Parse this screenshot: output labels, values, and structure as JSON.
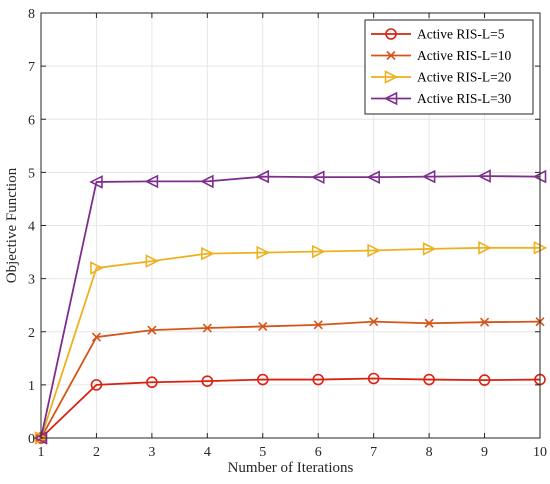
{
  "chart_data": {
    "type": "line",
    "title": "",
    "xlabel": "Number of Iterations",
    "ylabel": "Objective Function",
    "xlim": [
      1,
      10
    ],
    "ylim": [
      0,
      8
    ],
    "xticks": [
      "1",
      "2",
      "3",
      "4",
      "5",
      "6",
      "7",
      "8",
      "9",
      "10"
    ],
    "yticks": [
      "0",
      "1",
      "2",
      "3",
      "4",
      "5",
      "6",
      "7",
      "8"
    ],
    "grid": true,
    "legend_position": "top-right",
    "x": [
      1,
      2,
      3,
      4,
      5,
      6,
      7,
      8,
      9,
      10
    ],
    "series": [
      {
        "name": "Active RIS-L=5",
        "color": "#d92211",
        "marker": "circle",
        "values": [
          0,
          1.0,
          1.05,
          1.07,
          1.1,
          1.1,
          1.12,
          1.1,
          1.09,
          1.1
        ]
      },
      {
        "name": "Active RIS-L=10",
        "color": "#d45518",
        "marker": "x",
        "values": [
          0,
          1.9,
          2.03,
          2.07,
          2.1,
          2.13,
          2.19,
          2.16,
          2.18,
          2.19
        ]
      },
      {
        "name": "Active RIS-L=20",
        "color": "#edb120",
        "marker": "triangle-right",
        "values": [
          0,
          3.2,
          3.33,
          3.47,
          3.49,
          3.51,
          3.53,
          3.56,
          3.58,
          3.58
        ]
      },
      {
        "name": "Active RIS-L=30",
        "color": "#7e2f8e",
        "marker": "triangle-left",
        "values": [
          0,
          4.82,
          4.83,
          4.83,
          4.92,
          4.91,
          4.91,
          4.92,
          4.93,
          4.92
        ]
      }
    ]
  }
}
